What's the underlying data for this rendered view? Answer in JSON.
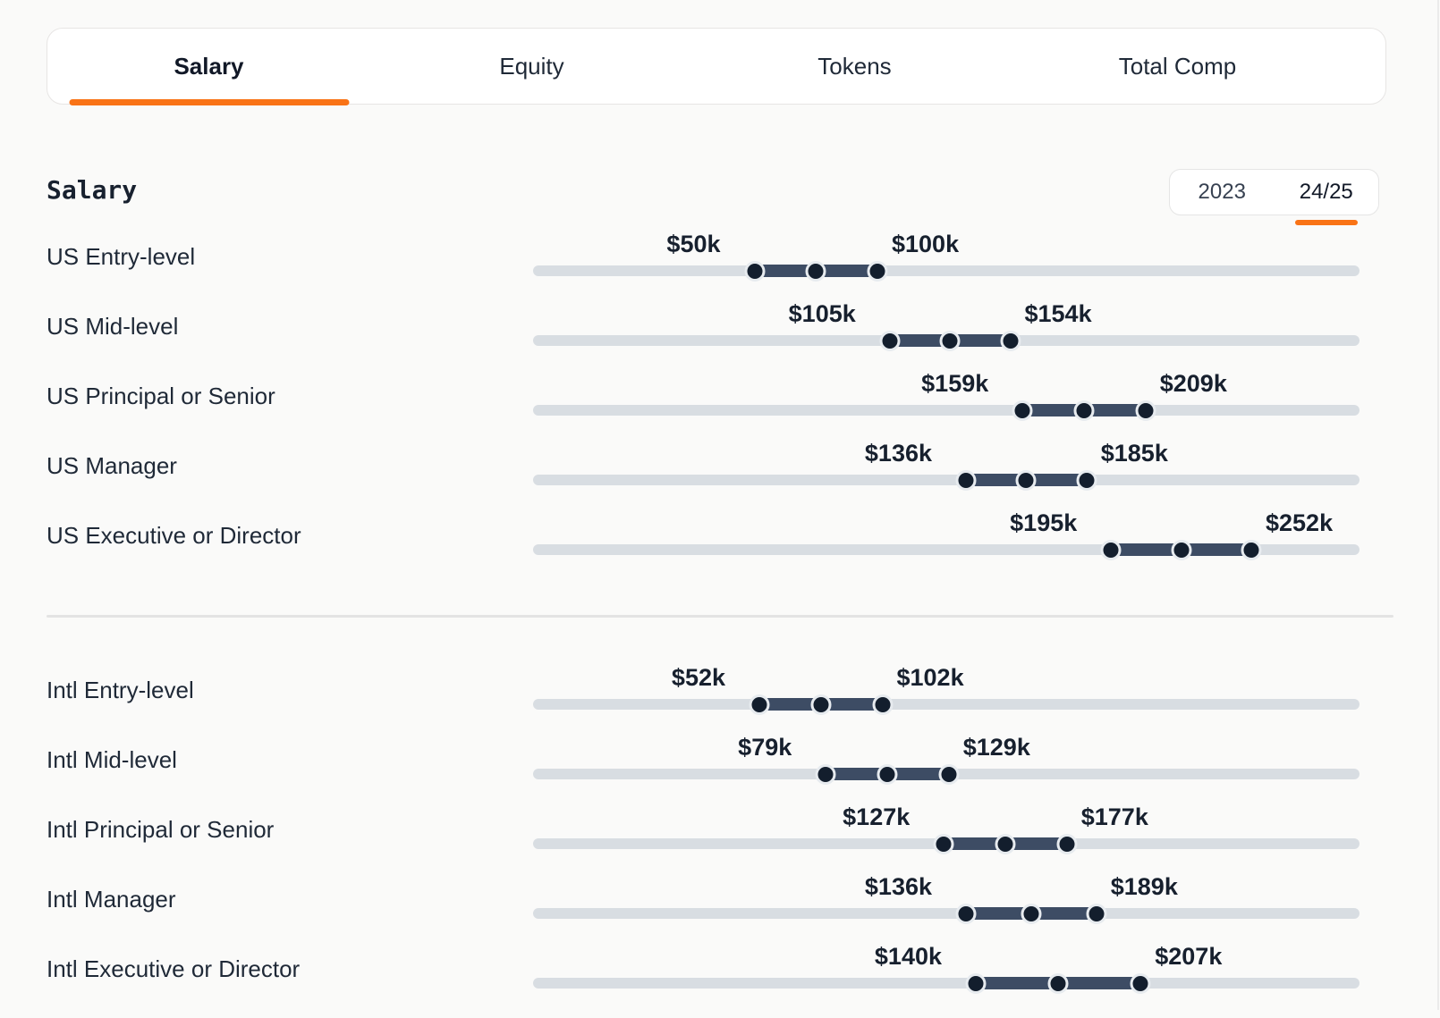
{
  "page": {
    "background": "#fafaf9"
  },
  "tabs": {
    "items": [
      {
        "label": "Salary",
        "active": true
      },
      {
        "label": "Equity",
        "active": false
      },
      {
        "label": "Tokens",
        "active": false
      },
      {
        "label": "Total Comp",
        "active": false
      }
    ]
  },
  "section": {
    "title": "Salary"
  },
  "year_toggle": {
    "options": [
      {
        "label": "2023",
        "active": false
      },
      {
        "label": "24/25",
        "active": true
      }
    ]
  },
  "chart_data": {
    "type": "range",
    "title": "Salary",
    "unit": "USD thousands per year",
    "axis_domain": [
      -40,
      296
    ],
    "groups": [
      {
        "name": "US",
        "rows": [
          {
            "label": "US Entry-level",
            "min": 50,
            "max": 100,
            "min_label": "$50k",
            "max_label": "$100k"
          },
          {
            "label": "US Mid-level",
            "min": 105,
            "max": 154,
            "min_label": "$105k",
            "max_label": "$154k"
          },
          {
            "label": "US Principal or Senior",
            "min": 159,
            "max": 209,
            "min_label": "$159k",
            "max_label": "$209k"
          },
          {
            "label": "US Manager",
            "min": 136,
            "max": 185,
            "min_label": "$136k",
            "max_label": "$185k"
          },
          {
            "label": "US Executive or Director",
            "min": 195,
            "max": 252,
            "min_label": "$195k",
            "max_label": "$252k"
          }
        ]
      },
      {
        "name": "Intl",
        "rows": [
          {
            "label": "Intl Entry-level",
            "min": 52,
            "max": 102,
            "min_label": "$52k",
            "max_label": "$102k"
          },
          {
            "label": "Intl Mid-level",
            "min": 79,
            "max": 129,
            "min_label": "$79k",
            "max_label": "$129k"
          },
          {
            "label": "Intl Principal or Senior",
            "min": 127,
            "max": 177,
            "min_label": "$127k",
            "max_label": "$177k"
          },
          {
            "label": "Intl Manager",
            "min": 136,
            "max": 189,
            "min_label": "$136k",
            "max_label": "$189k"
          },
          {
            "label": "Intl Executive or Director",
            "min": 140,
            "max": 207,
            "min_label": "$140k",
            "max_label": "$207k"
          }
        ]
      }
    ],
    "colors": {
      "accent": "#f97316",
      "track": "#d8dde2",
      "range": "#3d4c64",
      "dot": "#131e2d"
    }
  }
}
